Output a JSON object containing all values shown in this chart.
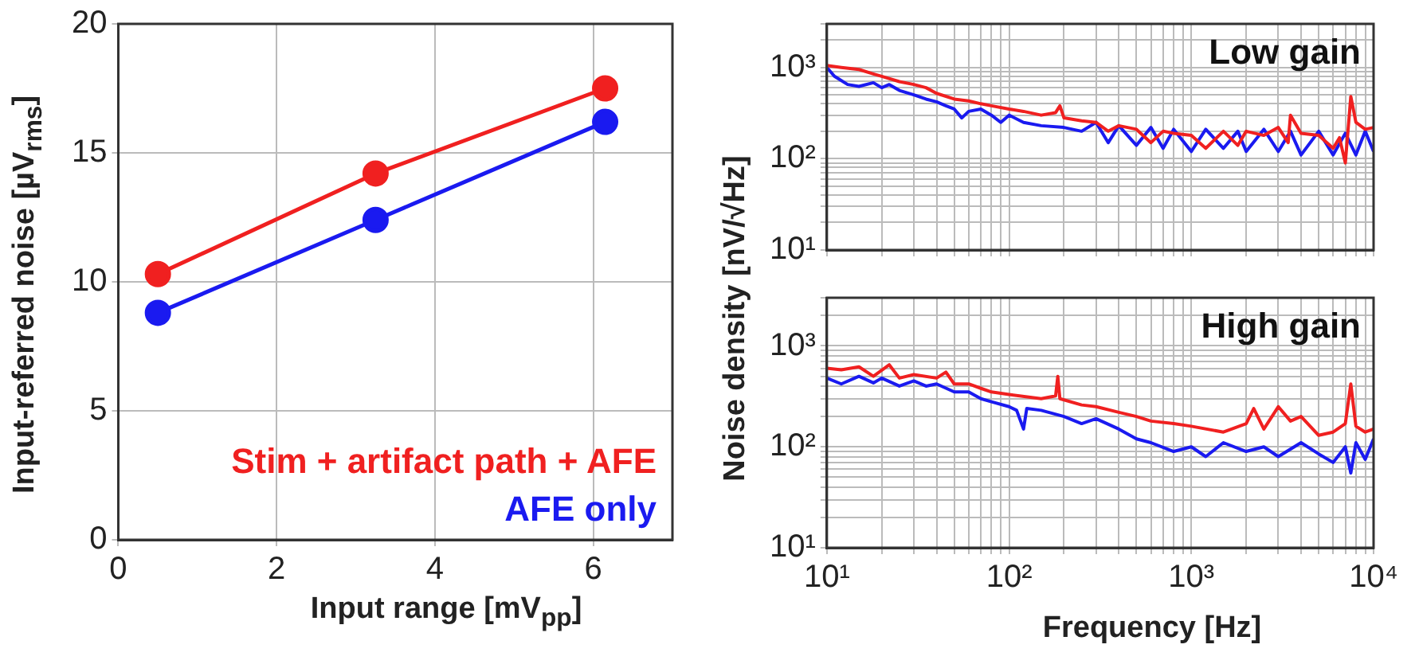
{
  "chart_data": [
    {
      "type": "line",
      "xlabel": "Input range [mV$_{pp}$]",
      "ylabel": "Input-referred noise [µV$_{rms}$]",
      "xlim": [
        0,
        7
      ],
      "xticks": [
        0,
        2,
        4,
        6
      ],
      "ylim": [
        0,
        20
      ],
      "yticks": [
        0,
        5,
        10,
        15,
        20
      ],
      "grid": true,
      "legend": "bottom right",
      "marker": "circle",
      "line_style": "solid",
      "x": [
        0.5,
        3.25,
        6.15
      ],
      "series": [
        {
          "name": "Stim + artifact path + AFE",
          "color": "#f02020",
          "values": [
            10.3,
            14.2,
            17.5
          ]
        },
        {
          "name": "AFE only",
          "color": "#1a1af0",
          "values": [
            8.8,
            12.4,
            16.2
          ]
        }
      ]
    },
    {
      "type": "line",
      "title": "Low gain",
      "ylabel": "Noise density [nV/√Hz]",
      "log": "xy",
      "grid": true,
      "tick_labels": "y",
      "xlim": [
        10,
        10000
      ],
      "ylim": [
        10,
        3000
      ],
      "xticks": [
        {
          "value": 10,
          "label": null
        },
        {
          "value": 20,
          "label": null
        },
        {
          "value": 30,
          "label": null
        },
        {
          "value": 40,
          "label": null
        },
        {
          "value": 50,
          "label": null
        },
        {
          "value": 60,
          "label": null
        },
        {
          "value": 70,
          "label": null
        },
        {
          "value": 80,
          "label": null
        },
        {
          "value": 90,
          "label": null
        },
        {
          "value": 100,
          "label": null
        },
        {
          "value": 200,
          "label": null
        },
        {
          "value": 300,
          "label": null
        },
        {
          "value": 400,
          "label": null
        },
        {
          "value": 500,
          "label": null
        },
        {
          "value": 600,
          "label": null
        },
        {
          "value": 700,
          "label": null
        },
        {
          "value": 800,
          "label": null
        },
        {
          "value": 900,
          "label": null
        },
        {
          "value": 1000,
          "label": null
        },
        {
          "value": 2000,
          "label": null
        },
        {
          "value": 3000,
          "label": null
        },
        {
          "value": 4000,
          "label": null
        },
        {
          "value": 5000,
          "label": null
        },
        {
          "value": 6000,
          "label": null
        },
        {
          "value": 7000,
          "label": null
        },
        {
          "value": 8000,
          "label": null
        },
        {
          "value": 9000,
          "label": null
        },
        {
          "value": 10000,
          "label": null
        }
      ],
      "yticks": [
        {
          "value": 10,
          "label": "10¹"
        },
        {
          "value": 20,
          "label": null
        },
        {
          "value": 30,
          "label": null
        },
        {
          "value": 40,
          "label": null
        },
        {
          "value": 50,
          "label": null
        },
        {
          "value": 60,
          "label": null
        },
        {
          "value": 70,
          "label": null
        },
        {
          "value": 80,
          "label": null
        },
        {
          "value": 90,
          "label": null
        },
        {
          "value": 100,
          "label": "10²"
        },
        {
          "value": 200,
          "label": null
        },
        {
          "value": 300,
          "label": null
        },
        {
          "value": 400,
          "label": null
        },
        {
          "value": 500,
          "label": null
        },
        {
          "value": 600,
          "label": null
        },
        {
          "value": 700,
          "label": null
        },
        {
          "value": 800,
          "label": null
        },
        {
          "value": 900,
          "label": null
        },
        {
          "value": 1000,
          "label": "10³"
        },
        {
          "value": 2000,
          "label": null
        },
        {
          "value": 3000,
          "label": null
        }
      ],
      "series": [
        {
          "color": "#f02020",
          "x": [
            10,
            12,
            15,
            18,
            20,
            25,
            30,
            35,
            40,
            50,
            60,
            70,
            80,
            100,
            120,
            150,
            180,
            190,
            200,
            250,
            300,
            350,
            400,
            500,
            600,
            700,
            800,
            1000,
            1200,
            1500,
            1800,
            2000,
            2500,
            3000,
            3400,
            3500,
            4000,
            5000,
            6000,
            6500,
            7000,
            7500,
            8000,
            9000,
            10000
          ],
          "values": [
            1050,
            1000,
            950,
            850,
            800,
            700,
            650,
            600,
            520,
            450,
            430,
            400,
            380,
            350,
            330,
            300,
            320,
            380,
            280,
            260,
            250,
            200,
            230,
            210,
            150,
            200,
            190,
            180,
            130,
            200,
            140,
            200,
            180,
            220,
            150,
            300,
            190,
            180,
            130,
            170,
            90,
            480,
            250,
            210,
            220
          ]
        },
        {
          "color": "#1a1af0",
          "x": [
            10,
            11,
            13,
            15,
            18,
            20,
            22,
            25,
            30,
            35,
            40,
            45,
            50,
            55,
            60,
            70,
            80,
            90,
            100,
            120,
            150,
            200,
            250,
            300,
            350,
            400,
            500,
            600,
            700,
            800,
            1000,
            1200,
            1500,
            1800,
            2000,
            2500,
            3000,
            3500,
            4000,
            5000,
            6000,
            7000,
            8000,
            9000,
            10000
          ],
          "values": [
            1000,
            800,
            650,
            620,
            680,
            600,
            650,
            560,
            500,
            450,
            420,
            380,
            350,
            280,
            330,
            350,
            300,
            250,
            300,
            250,
            230,
            220,
            200,
            250,
            150,
            230,
            140,
            220,
            130,
            210,
            120,
            210,
            130,
            200,
            120,
            210,
            120,
            200,
            110,
            200,
            110,
            190,
            110,
            200,
            120
          ]
        }
      ]
    },
    {
      "type": "line",
      "title": "High gain",
      "xlabel": "Frequency [Hz]",
      "log": "xy",
      "grid": true,
      "xlim": [
        10,
        10000
      ],
      "ylim": [
        10,
        3000
      ],
      "xticks": [
        {
          "value": 10,
          "label": "10¹"
        },
        {
          "value": 20,
          "label": null
        },
        {
          "value": 30,
          "label": null
        },
        {
          "value": 40,
          "label": null
        },
        {
          "value": 50,
          "label": null
        },
        {
          "value": 60,
          "label": null
        },
        {
          "value": 70,
          "label": null
        },
        {
          "value": 80,
          "label": null
        },
        {
          "value": 90,
          "label": null
        },
        {
          "value": 100,
          "label": "10²"
        },
        {
          "value": 200,
          "label": null
        },
        {
          "value": 300,
          "label": null
        },
        {
          "value": 400,
          "label": null
        },
        {
          "value": 500,
          "label": null
        },
        {
          "value": 600,
          "label": null
        },
        {
          "value": 700,
          "label": null
        },
        {
          "value": 800,
          "label": null
        },
        {
          "value": 900,
          "label": null
        },
        {
          "value": 1000,
          "label": "10³"
        },
        {
          "value": 2000,
          "label": null
        },
        {
          "value": 3000,
          "label": null
        },
        {
          "value": 4000,
          "label": null
        },
        {
          "value": 5000,
          "label": null
        },
        {
          "value": 6000,
          "label": null
        },
        {
          "value": 7000,
          "label": null
        },
        {
          "value": 8000,
          "label": null
        },
        {
          "value": 9000,
          "label": null
        },
        {
          "value": 10000,
          "label": "10⁴"
        }
      ],
      "yticks": [
        {
          "value": 10,
          "label": "10¹"
        },
        {
          "value": 20,
          "label": null
        },
        {
          "value": 30,
          "label": null
        },
        {
          "value": 40,
          "label": null
        },
        {
          "value": 50,
          "label": null
        },
        {
          "value": 60,
          "label": null
        },
        {
          "value": 70,
          "label": null
        },
        {
          "value": 80,
          "label": null
        },
        {
          "value": 90,
          "label": null
        },
        {
          "value": 100,
          "label": "10²"
        },
        {
          "value": 200,
          "label": null
        },
        {
          "value": 300,
          "label": null
        },
        {
          "value": 400,
          "label": null
        },
        {
          "value": 500,
          "label": null
        },
        {
          "value": 600,
          "label": null
        },
        {
          "value": 700,
          "label": null
        },
        {
          "value": 800,
          "label": null
        },
        {
          "value": 900,
          "label": null
        },
        {
          "value": 1000,
          "label": "10³"
        },
        {
          "value": 2000,
          "label": null
        },
        {
          "value": 3000,
          "label": null
        }
      ],
      "series": [
        {
          "color": "#f02020",
          "x": [
            10,
            12,
            15,
            18,
            22,
            25,
            30,
            40,
            45,
            50,
            60,
            70,
            80,
            100,
            150,
            180,
            185,
            190,
            250,
            300,
            400,
            500,
            600,
            800,
            1000,
            1500,
            2000,
            2200,
            2500,
            3000,
            3500,
            4000,
            5000,
            6000,
            7000,
            7500,
            8000,
            9000,
            10000
          ],
          "values": [
            600,
            580,
            620,
            500,
            650,
            480,
            520,
            480,
            550,
            420,
            420,
            380,
            350,
            330,
            300,
            320,
            500,
            300,
            260,
            250,
            220,
            200,
            180,
            170,
            160,
            140,
            170,
            240,
            150,
            250,
            180,
            200,
            130,
            140,
            170,
            420,
            160,
            140,
            150
          ]
        },
        {
          "color": "#1a1af0",
          "x": [
            10,
            12,
            15,
            18,
            20,
            25,
            30,
            35,
            40,
            50,
            60,
            70,
            80,
            100,
            110,
            120,
            125,
            150,
            200,
            250,
            300,
            400,
            500,
            600,
            800,
            1000,
            1200,
            1500,
            2000,
            2500,
            3000,
            4000,
            5000,
            6000,
            7000,
            7500,
            8000,
            9000,
            10000
          ],
          "values": [
            480,
            420,
            500,
            430,
            480,
            400,
            450,
            400,
            420,
            350,
            350,
            300,
            280,
            250,
            230,
            150,
            240,
            230,
            200,
            170,
            190,
            150,
            120,
            110,
            90,
            100,
            80,
            110,
            90,
            100,
            80,
            110,
            85,
            70,
            100,
            55,
            110,
            75,
            120
          ]
        }
      ]
    }
  ]
}
